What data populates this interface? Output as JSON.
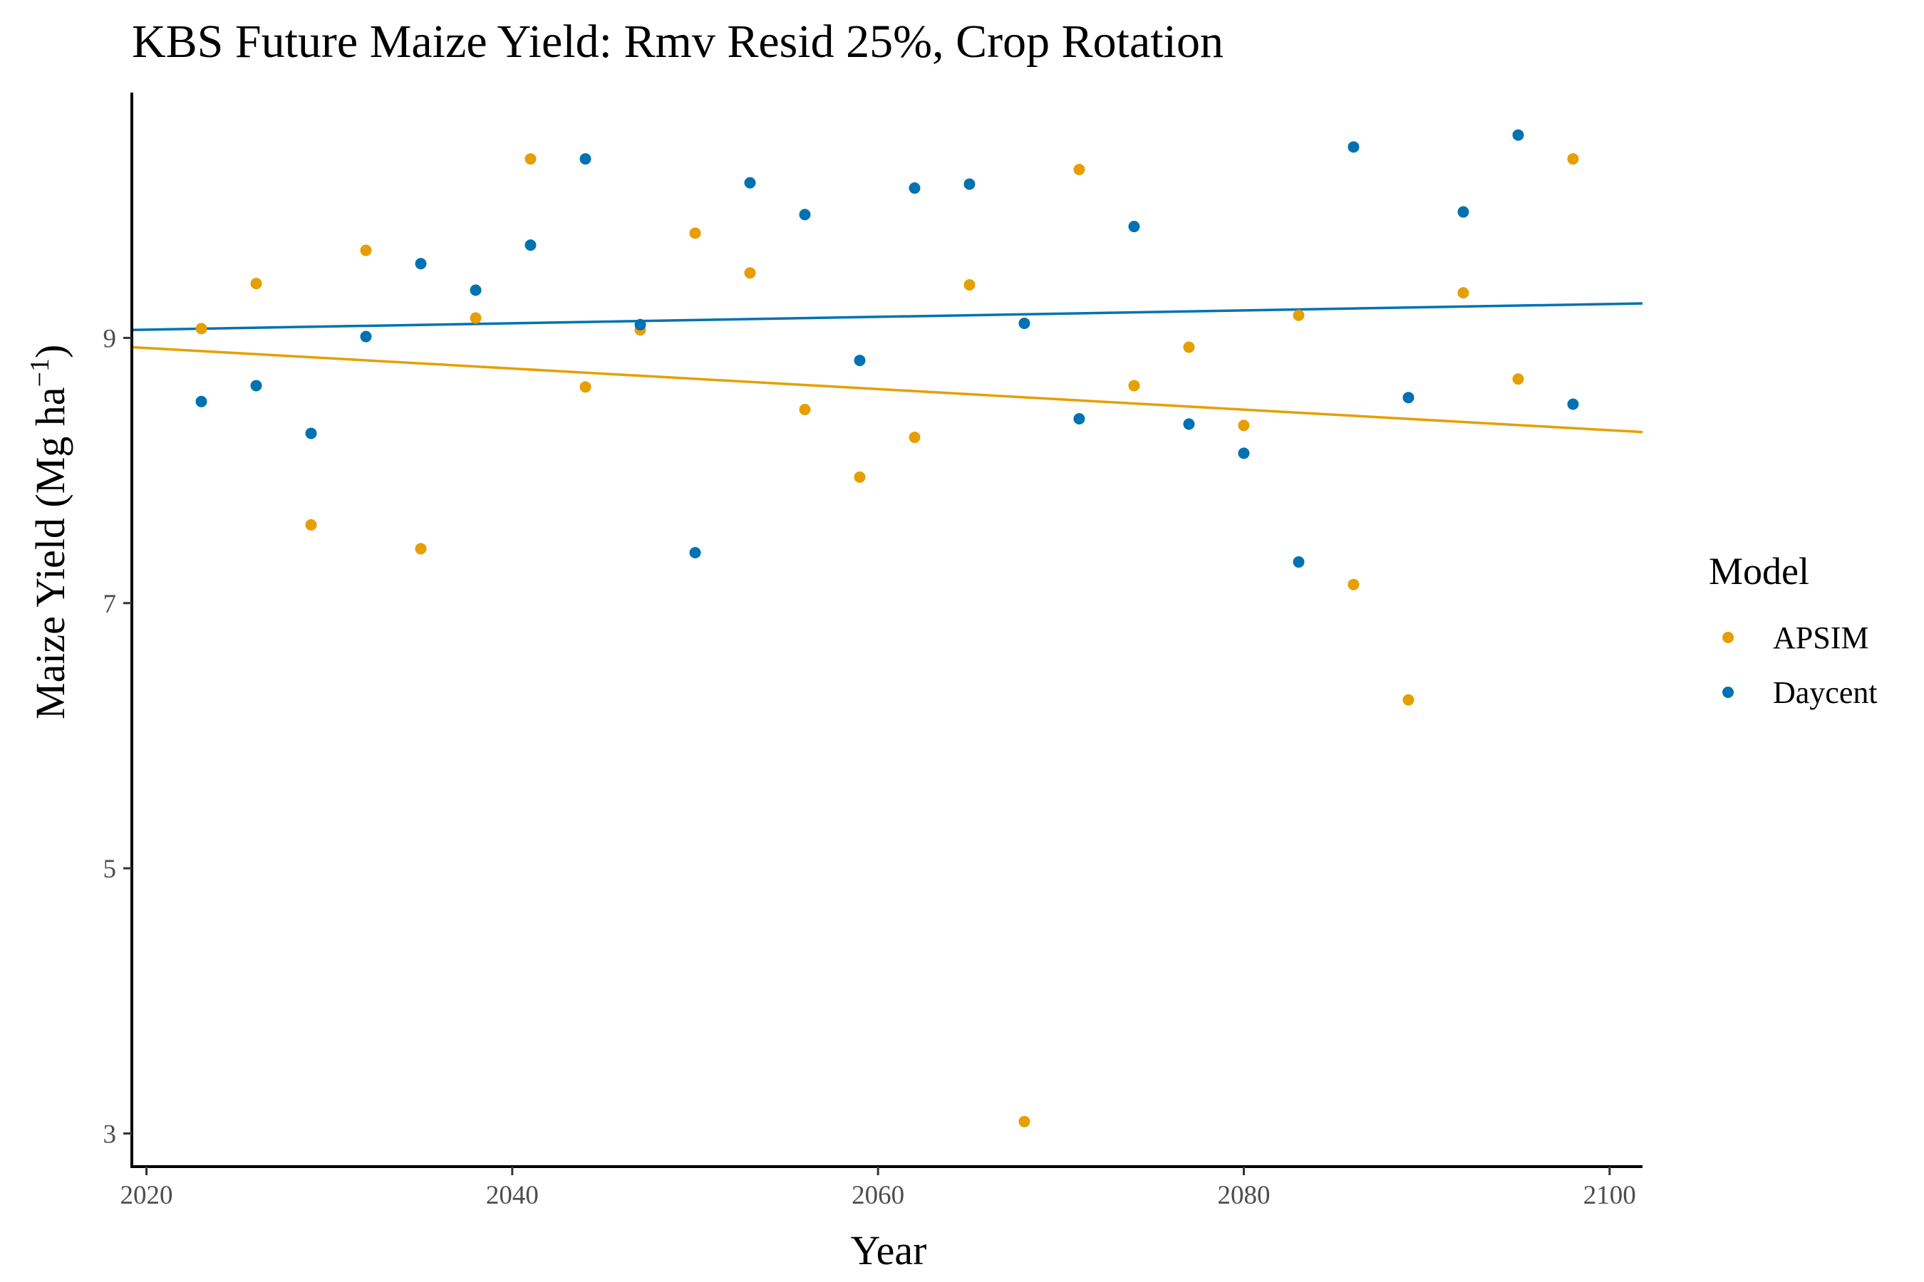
{
  "chart_data": {
    "type": "scatter",
    "title": "KBS Future Maize Yield:  Rmv Resid 25%, Crop Rotation",
    "xlabel": "Year",
    "ylabel_main": "Maize Yield (Mg ha",
    "ylabel_sup": "−1",
    "ylabel_close": ")",
    "xlim": [
      2019.2,
      2101.8
    ],
    "ylim": [
      2.75,
      10.85
    ],
    "xticks": [
      2020,
      2040,
      2060,
      2080,
      2100
    ],
    "yticks": [
      3,
      5,
      7,
      9
    ],
    "grid": false,
    "legend": {
      "title": "Model",
      "position": "right"
    },
    "series": [
      {
        "name": "APSIM",
        "color": "#E69F00",
        "trend": [
          [
            2019.2,
            8.93
          ],
          [
            2101.8,
            8.29
          ]
        ],
        "points": [
          [
            2023,
            9.07
          ],
          [
            2026,
            9.41
          ],
          [
            2029,
            7.59
          ],
          [
            2032,
            9.66
          ],
          [
            2035,
            7.41
          ],
          [
            2038,
            9.15
          ],
          [
            2041,
            10.35
          ],
          [
            2044,
            8.63
          ],
          [
            2047,
            9.06
          ],
          [
            2050,
            9.79
          ],
          [
            2053,
            9.49
          ],
          [
            2056,
            8.46
          ],
          [
            2059,
            7.95
          ],
          [
            2062,
            8.25
          ],
          [
            2065,
            9.4
          ],
          [
            2068,
            3.09
          ],
          [
            2071,
            10.27
          ],
          [
            2074,
            8.64
          ],
          [
            2077,
            8.93
          ],
          [
            2080,
            8.34
          ],
          [
            2083,
            9.17
          ],
          [
            2086,
            7.14
          ],
          [
            2089,
            6.27
          ],
          [
            2092,
            9.34
          ],
          [
            2095,
            8.69
          ],
          [
            2098,
            10.35
          ]
        ]
      },
      {
        "name": "Daycent",
        "color": "#0072B2",
        "trend": [
          [
            2019.2,
            9.06
          ],
          [
            2101.8,
            9.26
          ]
        ],
        "points": [
          [
            2023,
            8.52
          ],
          [
            2026,
            8.64
          ],
          [
            2029,
            8.28
          ],
          [
            2032,
            9.01
          ],
          [
            2035,
            9.56
          ],
          [
            2038,
            9.36
          ],
          [
            2041,
            9.7
          ],
          [
            2044,
            10.35
          ],
          [
            2047,
            9.1
          ],
          [
            2050,
            7.38
          ],
          [
            2053,
            10.17
          ],
          [
            2056,
            9.93
          ],
          [
            2059,
            8.83
          ],
          [
            2062,
            10.13
          ],
          [
            2065,
            10.16
          ],
          [
            2068,
            9.11
          ],
          [
            2071,
            8.39
          ],
          [
            2074,
            9.84
          ],
          [
            2077,
            8.35
          ],
          [
            2080,
            8.13
          ],
          [
            2083,
            7.31
          ],
          [
            2086,
            10.44
          ],
          [
            2089,
            8.55
          ],
          [
            2092,
            9.95
          ],
          [
            2095,
            10.53
          ],
          [
            2098,
            8.5
          ]
        ]
      }
    ]
  }
}
